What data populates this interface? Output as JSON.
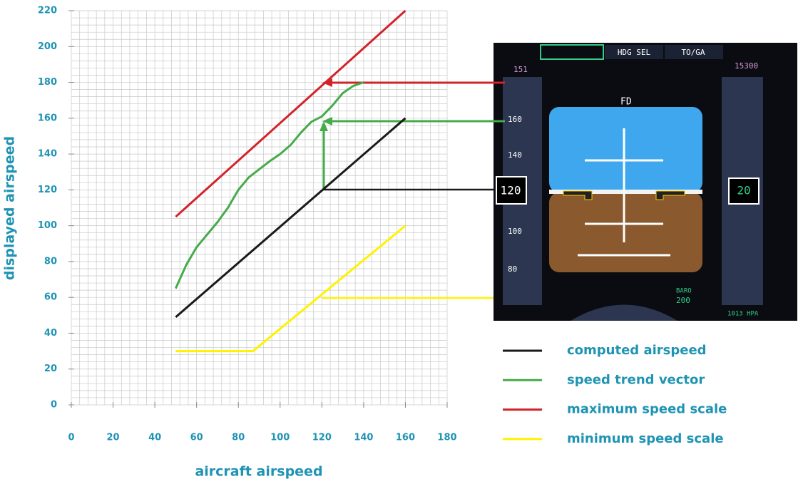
{
  "chart_data": {
    "type": "line",
    "x_label": "aircraft airspeed",
    "y_label": "displayed airspeed",
    "xlim": [
      0,
      180
    ],
    "ylim": [
      0,
      220
    ],
    "xticks": [
      0,
      20,
      40,
      60,
      80,
      100,
      120,
      140,
      160,
      180
    ],
    "yticks": [
      0,
      20,
      40,
      60,
      80,
      100,
      120,
      140,
      160,
      180,
      200,
      220
    ],
    "grid": true,
    "legend": "right",
    "series": [
      {
        "name": "computed airspeed",
        "color": "#1a1a1a",
        "x": [
          50,
          160
        ],
        "values": [
          49,
          160
        ]
      },
      {
        "name": "speed trend vector",
        "color": "#46ab4a",
        "x": [
          50,
          55,
          60,
          70,
          75,
          80,
          85,
          95,
          100,
          105,
          110,
          115,
          120,
          125,
          130,
          135,
          140
        ],
        "values": [
          65,
          78,
          88,
          102,
          110,
          120,
          127,
          136,
          140,
          145,
          152,
          158,
          161,
          167,
          174,
          178,
          180
        ]
      },
      {
        "name": "maximum speed scale",
        "color": "#d2232a",
        "x": [
          50,
          160
        ],
        "values": [
          105,
          220
        ]
      },
      {
        "name": "minimum speed scale",
        "color": "#fff200",
        "x": [
          50,
          87,
          160
        ],
        "values": [
          30,
          30,
          100
        ]
      }
    ]
  },
  "inset": {
    "hdg": "HDG SEL",
    "toga": "TO/GA",
    "fd": "FD",
    "sel_speed": "151",
    "sel_alt": "15300",
    "speed": "120",
    "s160": "160",
    "s140": "140",
    "s100": "100",
    "s80": "80",
    "baro": "BARO",
    "baro_val": "200",
    "qnh": "1013 HPA",
    "alt": "20"
  }
}
